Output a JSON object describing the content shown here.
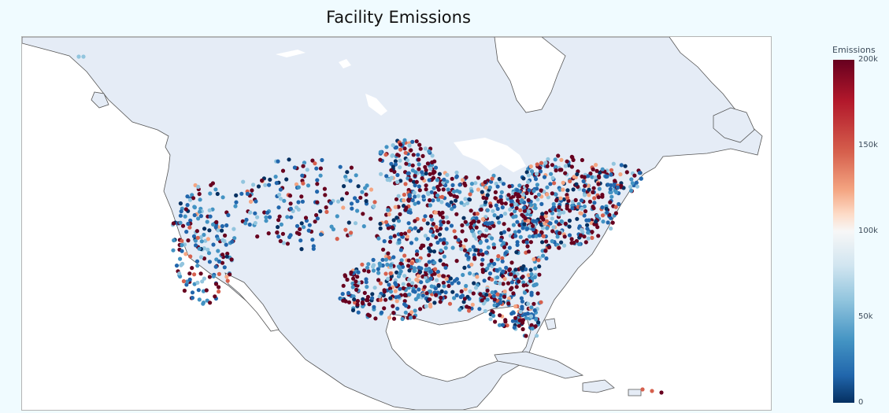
{
  "title": "Facility Emissions",
  "map": {
    "land_color": "#e5ecf6",
    "water_color": "#ffffff",
    "border_color": "#555555",
    "colorscale": [
      "#053061",
      "#2166ac",
      "#4393c3",
      "#92c5de",
      "#d1e5f0",
      "#f7f7f7",
      "#fddbc7",
      "#f4a582",
      "#d6604d",
      "#b2182b",
      "#67001f"
    ]
  },
  "colorbar": {
    "title": "Emissions",
    "range": [
      0,
      200000
    ],
    "ticks": [
      {
        "value": 200000,
        "label": "200k"
      },
      {
        "value": 150000,
        "label": "150k"
      },
      {
        "value": 100000,
        "label": "100k"
      },
      {
        "value": 50000,
        "label": "50k"
      },
      {
        "value": 0,
        "label": "0"
      }
    ]
  }
}
